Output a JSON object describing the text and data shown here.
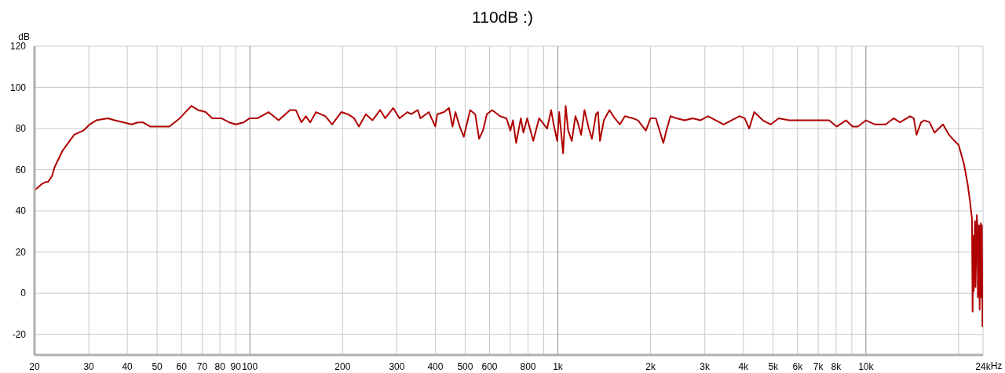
{
  "chart_data": {
    "type": "line",
    "title": "110dB :)",
    "ylabel": "dB",
    "xlabel": "Hz",
    "log": "x",
    "grid": true,
    "color": "#b00000",
    "xlim": [
      20,
      24000
    ],
    "ylim": [
      -30,
      120
    ],
    "xticks": [
      20,
      30,
      40,
      50,
      60,
      70,
      80,
      90,
      100,
      200,
      300,
      400,
      500,
      600,
      {
        "value": 700,
        "label": null
      },
      800,
      {
        "value": 900,
        "label": null
      },
      {
        "value": 1000,
        "label": "1k"
      },
      {
        "value": 2000,
        "label": "2k"
      },
      {
        "value": 3000,
        "label": "3k"
      },
      {
        "value": 4000,
        "label": "4k"
      },
      {
        "value": 5000,
        "label": "5k"
      },
      {
        "value": 6000,
        "label": "6k"
      },
      {
        "value": 7000,
        "label": "7k"
      },
      {
        "value": 8000,
        "label": "8k"
      },
      {
        "value": 9000,
        "label": null
      },
      {
        "value": 10000,
        "label": "10k"
      },
      {
        "value": 20000,
        "label": null
      },
      {
        "value": 24000,
        "label": "24k"
      }
    ],
    "yticks": [
      -20,
      0,
      20,
      40,
      60,
      80,
      100,
      120
    ],
    "x": [
      20,
      21.1,
      21.7,
      22.1,
      22.8,
      23.2,
      24.6,
      26.9,
      28.8,
      30.2,
      31.7,
      34.6,
      36.4,
      39,
      41.3,
      43.3,
      45,
      47.4,
      50.6,
      54.8,
      59.2,
      64.6,
      67.9,
      71.9,
      75.5,
      80.8,
      85.7,
      90,
      95.4,
      100,
      106,
      115,
      124,
      135,
      141,
      147,
      152,
      157,
      164,
      176,
      185,
      198,
      208,
      218,
      226,
      238,
      250,
      265,
      275,
      292,
      306,
      325,
      334,
      351,
      358,
      381,
      400,
      406,
      427,
      443,
      455,
      465,
      480,
      495,
      519,
      539,
      555,
      571,
      588,
      612,
      649,
      681,
      701,
      715,
      732,
      758,
      773,
      795,
      832,
      869,
      923,
      951,
      969,
      995,
      1010,
      1040,
      1060,
      1080,
      1110,
      1140,
      1160,
      1190,
      1220,
      1260,
      1290,
      1330,
      1350,
      1370,
      1410,
      1470,
      1530,
      1590,
      1650,
      1750,
      1820,
      1930,
      2000,
      2080,
      2200,
      2250,
      2320,
      2430,
      2580,
      2740,
      2900,
      3070,
      3260,
      3450,
      3660,
      3880,
      4040,
      4180,
      4340,
      4630,
      4910,
      5210,
      5640,
      6100,
      6610,
      7160,
      7590,
      8040,
      8620,
      9050,
      9420,
      10000,
      10700,
      11600,
      12300,
      12900,
      13900,
      14300,
      14600,
      15100,
      15500,
      16100,
      16700,
      17800,
      18600,
      19400,
      20000,
      20800,
      21400,
      21800,
      22100,
      22200,
      22300,
      22400,
      22600,
      22700,
      22900,
      23000,
      23100,
      23300,
      23400,
      23600,
      23700,
      23800,
      23900
    ],
    "values": [
      50,
      53,
      54,
      54,
      57,
      61,
      69,
      77,
      79,
      82,
      84,
      85,
      84,
      83,
      82,
      83,
      83,
      81,
      81,
      81,
      85,
      91,
      89,
      88,
      85,
      85,
      83,
      82,
      83,
      85,
      85,
      88,
      84,
      89,
      89,
      83,
      86,
      83,
      88,
      86,
      82,
      88,
      87,
      85,
      81,
      87,
      84,
      89,
      85,
      90,
      85,
      88,
      87,
      89,
      85,
      88,
      81,
      87,
      88,
      90,
      81,
      88,
      81,
      76,
      89,
      87,
      75,
      79,
      87,
      89,
      86,
      85,
      79,
      84,
      73,
      85,
      78,
      85,
      74,
      85,
      80,
      89,
      82,
      74,
      88,
      68,
      91,
      79,
      74,
      86,
      83,
      77,
      89,
      80,
      75,
      87,
      88,
      74,
      84,
      89,
      85,
      82,
      86,
      85,
      84,
      79,
      85,
      85,
      73,
      79,
      86,
      85,
      84,
      85,
      84,
      86,
      84,
      82,
      84,
      86,
      85,
      80,
      88,
      84,
      82,
      85,
      84,
      84,
      84,
      84,
      84,
      81,
      84,
      81,
      81,
      84,
      82,
      82,
      85,
      83,
      86,
      85,
      77,
      83,
      84,
      83,
      78,
      82,
      77,
      74,
      72,
      63,
      53,
      44,
      36,
      -9,
      28,
      1,
      35,
      3,
      38,
      34,
      -2,
      33,
      -8,
      34,
      -2,
      33,
      -16
    ]
  }
}
